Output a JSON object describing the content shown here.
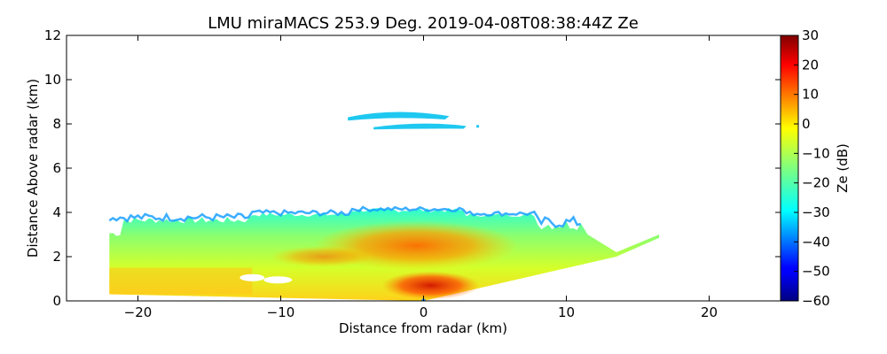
{
  "chart_data": {
    "type": "heatmap",
    "title": "LMU miraMACS 253.9 Deg. 2019-04-08T08:38:44Z  Ze",
    "xlabel": "Distance from radar (km)",
    "ylabel": "Distance Above radar  (km)",
    "xlim": [
      -25,
      25
    ],
    "ylim": [
      0,
      12
    ],
    "xticks": [
      -20,
      -10,
      0,
      10,
      20
    ],
    "xtick_labels": [
      "−20",
      "−10",
      "0",
      "10",
      "20"
    ],
    "yticks": [
      0,
      2,
      4,
      6,
      8,
      10,
      12
    ],
    "ytick_labels": [
      "0",
      "2",
      "4",
      "6",
      "8",
      "10",
      "12"
    ],
    "colorbar": {
      "label": "Ze (dB)",
      "range": [
        -60,
        30
      ],
      "ticks": [
        -60,
        -50,
        -40,
        -30,
        -20,
        -10,
        0,
        10,
        20,
        30
      ],
      "tick_labels": [
        "−60",
        "−50",
        "−40",
        "−30",
        "−20",
        "−10",
        "0",
        "10",
        "20",
        "30"
      ],
      "colormap": "jet"
    },
    "echo_regions": [
      {
        "name": "lower-cloud",
        "x_range": [
          -22,
          16.5
        ],
        "top_km": 4.2,
        "ze_range_db": [
          -30,
          20
        ]
      },
      {
        "name": "upper-cloud",
        "x_range": [
          -5.3,
          3.8
        ],
        "z_range_km": [
          7.7,
          8.7
        ],
        "ze_range_db": [
          -35,
          -28
        ]
      }
    ]
  }
}
